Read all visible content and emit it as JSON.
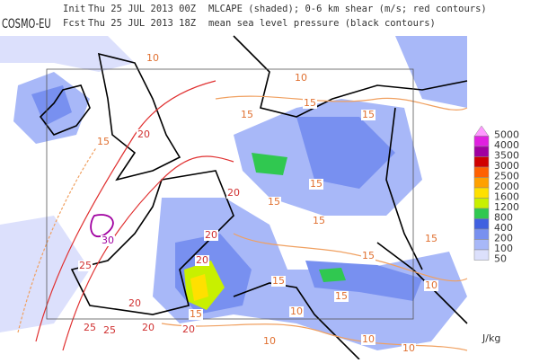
{
  "header": {
    "model": "COSMO-EU",
    "init_label": "Init",
    "init_time": "Thu 25 JUL 2013 00Z",
    "init_desc": "MLCAPE (shaded); 0-6 km shear (m/s; red contours)",
    "fcst_label": "Fcst",
    "fcst_time": "Thu 25 JUL 2013 18Z",
    "fcst_desc": "mean sea level pressure (black contours)"
  },
  "legend": {
    "unit": "J/kg",
    "levels": [
      {
        "value": 5000,
        "color": "#ff99ff"
      },
      {
        "value": 4000,
        "color": "#e020e0"
      },
      {
        "value": 3500,
        "color": "#a000a0"
      },
      {
        "value": 3000,
        "color": "#d00000"
      },
      {
        "value": 2500,
        "color": "#ff6000"
      },
      {
        "value": 2000,
        "color": "#ffa000"
      },
      {
        "value": 1600,
        "color": "#ffe000"
      },
      {
        "value": 1200,
        "color": "#c8f000"
      },
      {
        "value": 800,
        "color": "#30c850"
      },
      {
        "value": 400,
        "color": "#4060e0"
      },
      {
        "value": 200,
        "color": "#7890f0"
      },
      {
        "value": 100,
        "color": "#a8b8f8"
      },
      {
        "value": 50,
        "color": "#dce0fc"
      }
    ]
  },
  "contour_labels": [
    10,
    10,
    15,
    15,
    15,
    20,
    15,
    20,
    15,
    15,
    15,
    20,
    30,
    25,
    20,
    15,
    15,
    15,
    15,
    20,
    15,
    25,
    20,
    10,
    10,
    10,
    10,
    10,
    20,
    25
  ]
}
